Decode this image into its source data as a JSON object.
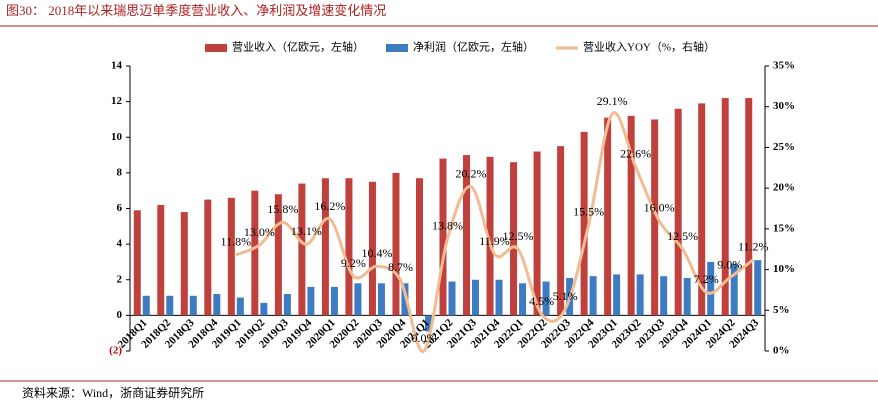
{
  "chart_data": {
    "type": "bar_line",
    "title": "图30：  2018年以来瑞思迈单季度营业收入、净利润及增速变化情况",
    "source": "资料来源：Wind，浙商证券研究所",
    "categories": [
      "2018Q1",
      "2018Q2",
      "2018Q3",
      "2018Q4",
      "2019Q1",
      "2019Q2",
      "2019Q3",
      "2019Q4",
      "2020Q1",
      "2020Q2",
      "2020Q3",
      "2020Q4",
      "2021Q1",
      "2021Q2",
      "2021Q3",
      "2021Q4",
      "2022Q1",
      "2022Q2",
      "2022Q3",
      "2022Q4",
      "2023Q1",
      "2023Q2",
      "2023Q3",
      "2023Q4",
      "2024Q1",
      "2024Q2",
      "2024Q3"
    ],
    "series": [
      {
        "name": "营业收入（亿欧元，左轴）",
        "color": "#c0403c",
        "type": "bar",
        "values": [
          5.9,
          6.2,
          5.8,
          6.5,
          6.6,
          7.0,
          6.8,
          7.4,
          7.7,
          7.7,
          7.5,
          8.0,
          7.7,
          8.8,
          9.0,
          8.9,
          8.6,
          9.2,
          9.5,
          10.3,
          11.1,
          11.2,
          11.0,
          11.6,
          11.9,
          12.2,
          12.2
        ]
      },
      {
        "name": "净利润（亿欧元，左轴）",
        "color": "#3d7cc2",
        "type": "bar",
        "values": [
          1.1,
          1.1,
          1.1,
          1.2,
          1.0,
          0.7,
          1.2,
          1.6,
          1.6,
          1.8,
          1.8,
          1.8,
          -0.9,
          1.9,
          2.0,
          2.0,
          1.8,
          1.9,
          2.1,
          2.2,
          2.3,
          2.3,
          2.2,
          2.1,
          3.0,
          2.9,
          3.1
        ]
      },
      {
        "name": "营业收入YOY（%，右轴）",
        "color": "#f2bc92",
        "type": "line",
        "axis": "y2",
        "values": [
          null,
          null,
          null,
          null,
          11.8,
          13.0,
          15.8,
          13.1,
          16.2,
          9.2,
          10.4,
          8.7,
          0.0,
          13.8,
          20.2,
          11.9,
          12.5,
          4.5,
          5.1,
          15.5,
          29.1,
          22.6,
          16.0,
          12.5,
          7.2,
          9.0,
          11.2
        ],
        "value_labels": [
          null,
          null,
          null,
          null,
          "11.8%",
          "13.0%",
          "15.8%",
          "13.1%",
          "16.2%",
          "9.2%",
          "10.4%",
          "8.7%",
          "0.0%",
          "13.8%",
          "20.2%",
          "11.9%",
          "12.5%",
          "4.5%",
          "5.1%",
          "15.5%",
          "29.1%",
          "22.6%",
          "16.0%",
          "12.5%",
          "7.2%",
          "9.0%",
          "11.2%"
        ]
      }
    ],
    "ylim": [
      -2,
      14
    ],
    "yticks": [
      {
        "value": -2,
        "label": "(2)"
      },
      0,
      2,
      4,
      6,
      8,
      10,
      12,
      14
    ],
    "y2lim": [
      0,
      35
    ],
    "y2ticks": [
      {
        "value": 0,
        "label": "0%"
      },
      {
        "value": 5,
        "label": "5%"
      },
      {
        "value": 10,
        "label": "10%"
      },
      {
        "value": 15,
        "label": "15%"
      },
      {
        "value": 20,
        "label": "20%"
      },
      {
        "value": 25,
        "label": "25%"
      },
      {
        "value": 30,
        "label": "30%"
      },
      {
        "value": 35,
        "label": "35%"
      }
    ]
  }
}
